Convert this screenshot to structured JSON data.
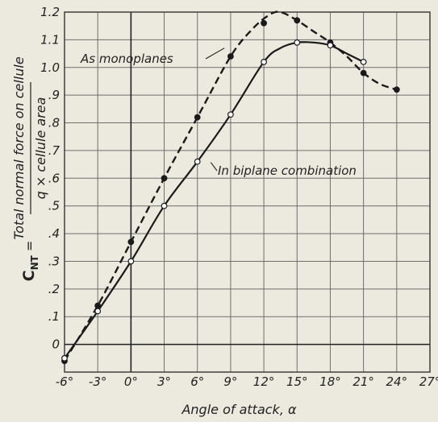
{
  "chart_data": {
    "type": "line",
    "xlabel": "Angle of attack, α",
    "ylabel": {
      "prefix": "C",
      "subscript": "NT",
      "equals": " =",
      "numerator": "Total normal force on cellule",
      "denominator": "q × cellule area"
    },
    "xlim": [
      -6,
      27
    ],
    "ylim": [
      -0.1,
      1.2
    ],
    "x_ticks": [
      -6,
      -3,
      0,
      3,
      6,
      9,
      12,
      15,
      18,
      21,
      24,
      27
    ],
    "x_tick_labels": [
      "-6°",
      "-3°",
      "0°",
      "3°",
      "6°",
      "9°",
      "12°",
      "15°",
      "18°",
      "21°",
      "24°",
      "27°"
    ],
    "y_ticks": [
      0,
      0.1,
      0.2,
      0.3,
      0.4,
      0.5,
      0.6,
      0.7,
      0.8,
      0.9,
      1.0,
      1.1,
      1.2
    ],
    "y_tick_labels": [
      "0",
      ".1",
      ".2",
      ".3",
      ".4",
      ".5",
      ".6",
      ".7",
      ".8",
      ".9",
      "1.0",
      "1.1",
      "1.2"
    ],
    "grid": true,
    "series": [
      {
        "name": "As monoplanes",
        "style": "dashed",
        "marker": "filled",
        "points": [
          [
            -6,
            -0.06
          ],
          [
            -3,
            0.14
          ],
          [
            0,
            0.37
          ],
          [
            3,
            0.6
          ],
          [
            6,
            0.82
          ],
          [
            9,
            1.04
          ],
          [
            12,
            1.16
          ],
          [
            15,
            1.17
          ],
          [
            18,
            1.09
          ],
          [
            21,
            0.98
          ],
          [
            24,
            0.92
          ]
        ],
        "curve_shape": [
          [
            -6,
            -0.06
          ],
          [
            -3,
            0.14
          ],
          [
            0,
            0.37
          ],
          [
            3,
            0.6
          ],
          [
            6,
            0.82
          ],
          [
            9,
            1.04
          ],
          [
            11,
            1.14
          ],
          [
            12.5,
            1.19
          ],
          [
            13.5,
            1.2
          ],
          [
            15,
            1.17
          ],
          [
            16.5,
            1.13
          ],
          [
            18,
            1.09
          ],
          [
            19.5,
            1.04
          ],
          [
            21,
            0.98
          ],
          [
            22.5,
            0.94
          ],
          [
            24,
            0.92
          ]
        ]
      },
      {
        "name": "In biplane combination",
        "style": "solid",
        "marker": "open",
        "points": [
          [
            -6,
            -0.05
          ],
          [
            -3,
            0.12
          ],
          [
            0,
            0.3
          ],
          [
            3,
            0.5
          ],
          [
            6,
            0.66
          ],
          [
            9,
            0.83
          ],
          [
            12,
            1.02
          ],
          [
            15,
            1.09
          ],
          [
            18,
            1.08
          ],
          [
            21,
            1.02
          ]
        ],
        "curve_shape": [
          [
            -6,
            -0.05
          ],
          [
            -3,
            0.12
          ],
          [
            0,
            0.3
          ],
          [
            3,
            0.5
          ],
          [
            6,
            0.66
          ],
          [
            9,
            0.83
          ],
          [
            12,
            1.02
          ],
          [
            13.5,
            1.07
          ],
          [
            15,
            1.09
          ],
          [
            16.5,
            1.09
          ],
          [
            18,
            1.08
          ],
          [
            19.5,
            1.05
          ],
          [
            21,
            1.02
          ]
        ]
      }
    ],
    "annotations": [
      {
        "text": "As monoplanes",
        "series": 0,
        "x": 8,
        "y": 1.07
      },
      {
        "text": "In biplane combination",
        "series": 1,
        "x": 7.5,
        "y": 0.66
      }
    ]
  }
}
